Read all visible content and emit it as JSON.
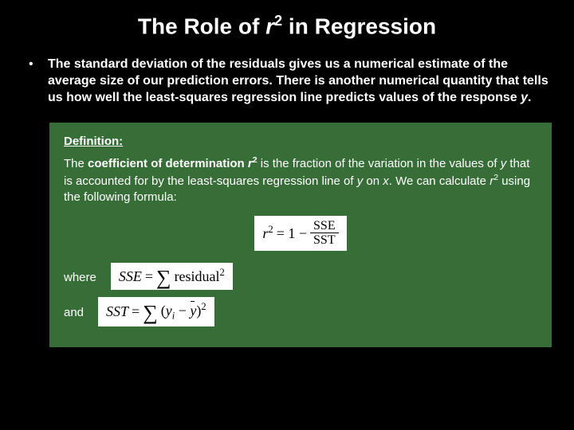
{
  "colors": {
    "background": "#000000",
    "text": "#ffffff",
    "definition_box": "#376e37",
    "formula_bg": "#ffffff",
    "formula_text": "#000000"
  },
  "typography": {
    "title_fontsize": 28,
    "body_fontsize": 16,
    "def_fontsize": 15,
    "formula_font": "Times New Roman"
  },
  "title": {
    "pre": "The Role of ",
    "r": "r",
    "sup": "2",
    "post": " in Regression"
  },
  "bullet": {
    "marker": "•",
    "text_pre": "The standard deviation of the residuals gives us a numerical estimate of the average size of our prediction errors. There is another numerical quantity that tells us how well the least-squares regression line predicts values of the response ",
    "y": "y",
    "text_post": "."
  },
  "definition": {
    "heading": "Definition:",
    "body_1": "The ",
    "term": "coefficient of determination ",
    "r": "r",
    "sup": "2",
    "body_2": " is the fraction of the variation in the values of ",
    "y1": "y",
    "body_3": " that is accounted for by the least-squares regression line of ",
    "y2": "y",
    "body_4": " on ",
    "x": "x",
    "body_5": ". We can calculate ",
    "r2": "r",
    "sup2": "2",
    "body_6": " using the following formula:"
  },
  "formulas": {
    "main": {
      "lhs_r": "r",
      "lhs_sup": "2",
      "eq": " = 1 − ",
      "num": "SSE",
      "den": "SST"
    },
    "where": "where",
    "sse": {
      "lhs": "SSE",
      "eq": " = ",
      "sigma": "∑",
      "term": "residual",
      "sup": "2"
    },
    "and": "and",
    "sst": {
      "lhs": "SST",
      "eq": " = ",
      "sigma": "∑",
      "open": "(",
      "yi": "y",
      "sub": "i",
      "minus": " − ",
      "ybar": "y",
      "close": ")",
      "sup": "2"
    }
  }
}
